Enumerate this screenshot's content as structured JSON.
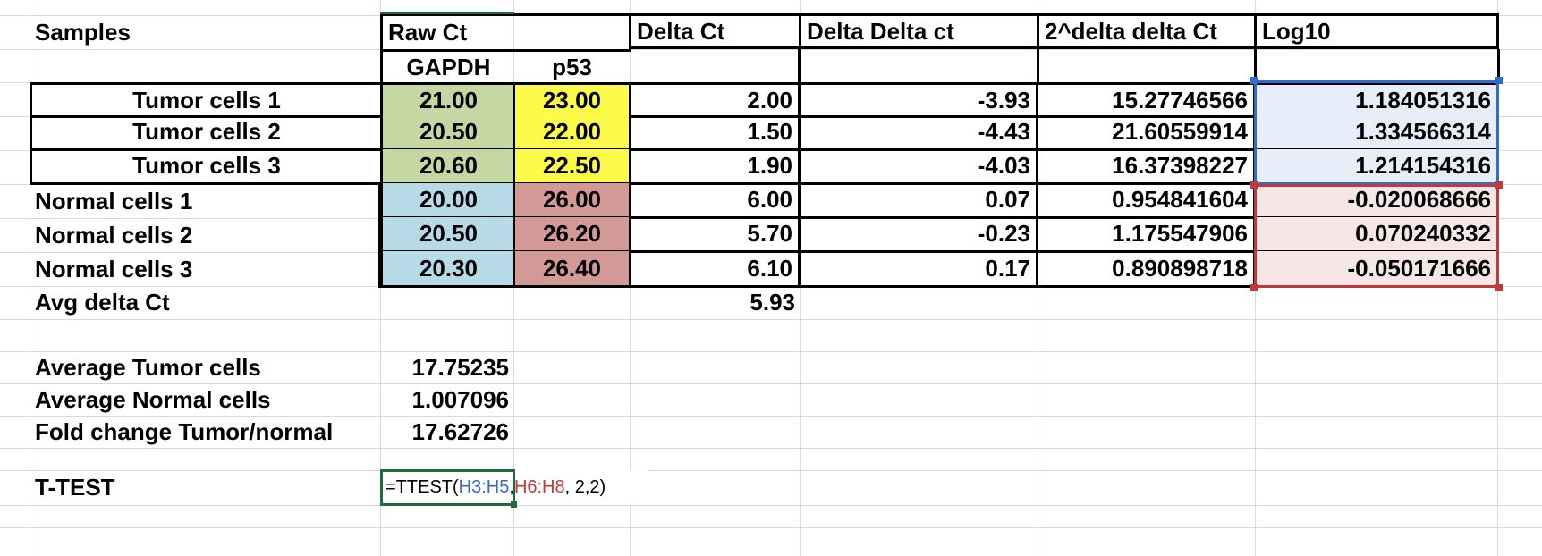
{
  "headers": {
    "samples": "Samples",
    "raw_ct": "Raw Ct",
    "delta_ct": "Delta Ct",
    "delta_delta_ct": "Delta Delta ct",
    "pow_delta": "2^delta delta Ct",
    "log10": "Log10",
    "gapdh": "GAPDH",
    "p53": "p53"
  },
  "rows": [
    {
      "name": "Tumor cells 1",
      "gapdh": "21.00",
      "p53": "23.00",
      "delta": "2.00",
      "ddct": "-3.93",
      "pow": "15.27746566",
      "log": "1.184051316"
    },
    {
      "name": "Tumor cells 2",
      "gapdh": "20.50",
      "p53": "22.00",
      "delta": "1.50",
      "ddct": "-4.43",
      "pow": "21.60559914",
      "log": "1.334566314"
    },
    {
      "name": "Tumor cells 3",
      "gapdh": "20.60",
      "p53": "22.50",
      "delta": "1.90",
      "ddct": "-4.03",
      "pow": "16.37398227",
      "log": "1.214154316"
    },
    {
      "name": "Normal cells 1",
      "gapdh": "20.00",
      "p53": "26.00",
      "delta": "6.00",
      "ddct": "0.07",
      "pow": "0.954841604",
      "log": "-0.020068666"
    },
    {
      "name": "Normal cells 2",
      "gapdh": "20.50",
      "p53": "26.20",
      "delta": "5.70",
      "ddct": "-0.23",
      "pow": "1.175547906",
      "log": "0.070240332"
    },
    {
      "name": "Normal cells 3",
      "gapdh": "20.30",
      "p53": "26.40",
      "delta": "6.10",
      "ddct": "0.17",
      "pow": "0.890898718",
      "log": "-0.050171666"
    }
  ],
  "avg_delta": {
    "label": "Avg delta Ct",
    "value": "5.93"
  },
  "summary": [
    {
      "label": "Average Tumor cells",
      "value": "17.75235"
    },
    {
      "label": "Average Normal cells",
      "value": "1.007096"
    },
    {
      "label": "Fold change Tumor/normal",
      "value": "17.62726"
    }
  ],
  "ttest": {
    "label": "T-TEST",
    "formula_prefix": "=TTEST(",
    "ref1": "H3:H5",
    "comma": ",",
    "ref2": "H6:H8",
    "formula_suffix": ", 2,2)"
  },
  "colors": {
    "green": "#c5d7a2",
    "yellow": "#fdfb4a",
    "blue": "#b6dbe6",
    "pink": "#d39996",
    "ref_blue": "#2f6dcc",
    "ref_red": "#c0393b",
    "active": "#1f6b3d"
  }
}
